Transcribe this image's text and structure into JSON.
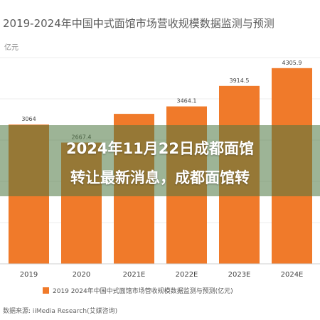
{
  "chart_data": {
    "type": "bar",
    "title": "2019-2024年中国中式面馆市场营收规模数据监测与预测",
    "unit": "亿元",
    "categories": [
      "2019",
      "2020",
      "2021E",
      "2022E",
      "2023E",
      "2024E"
    ],
    "values": [
      3064.0,
      2667.4,
      3300.0,
      3464.1,
      3914.5,
      4305.9
    ],
    "data_labels": [
      "3064",
      "2667.4",
      "",
      "3464.1",
      "3914.5",
      "4305.9"
    ],
    "ylim": [
      0,
      4600
    ],
    "bar_color": "#f07a2a",
    "legend": "2019  2024年中国中式面馆市场营收规模数据监测与预测(亿元)",
    "legend_position": "bottom",
    "grid": true
  },
  "source": "数据来源: iiMedia Research(艾媒咨询)",
  "overlay_headline": {
    "line1": "2024年11月22日成都面馆",
    "line2": "转让最新消息，成都面馆转"
  }
}
